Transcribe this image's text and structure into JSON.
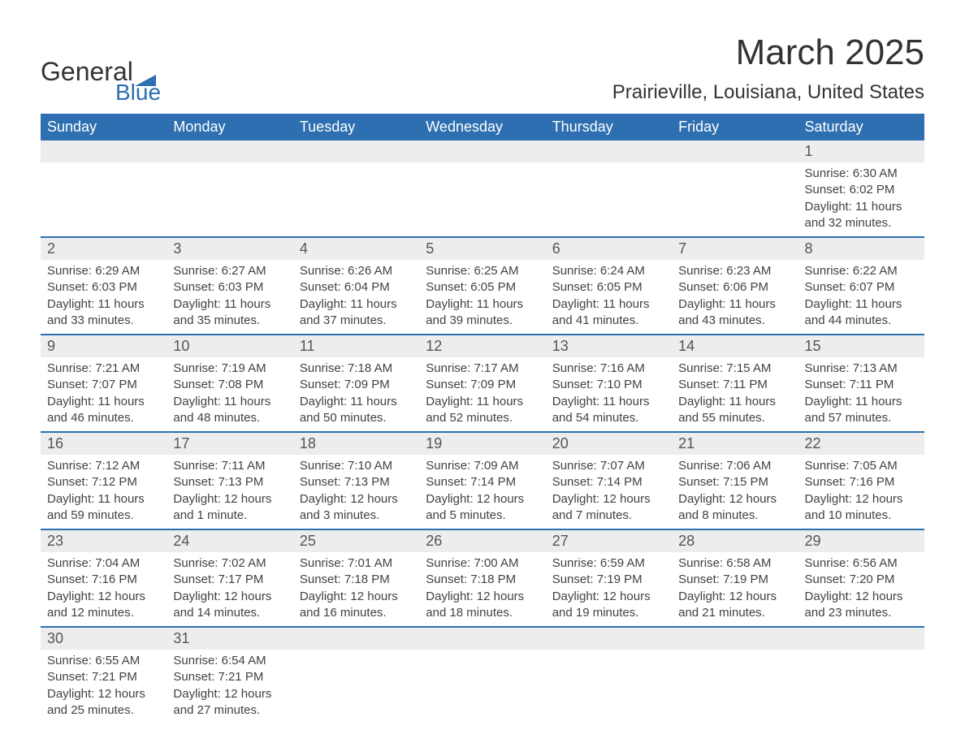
{
  "logo": {
    "top": "General",
    "bottom": "Blue",
    "shape_color": "#2d6fb0"
  },
  "title": "March 2025",
  "location": "Prairieville, Louisiana, United States",
  "colors": {
    "header_bg": "#2d6fb0",
    "header_text": "#ffffff",
    "daynum_bg": "#ededed",
    "daynum_text": "#555555",
    "body_text": "#424242",
    "row_border": "#2d6fb0",
    "page_bg": "#ffffff"
  },
  "typography": {
    "title_fontsize": 44,
    "location_fontsize": 24,
    "header_fontsize": 18,
    "daynum_fontsize": 18,
    "body_fontsize": 15
  },
  "day_headers": [
    "Sunday",
    "Monday",
    "Tuesday",
    "Wednesday",
    "Thursday",
    "Friday",
    "Saturday"
  ],
  "weeks": [
    [
      null,
      null,
      null,
      null,
      null,
      null,
      {
        "n": "1",
        "sr": "Sunrise: 6:30 AM",
        "ss": "Sunset: 6:02 PM",
        "d1": "Daylight: 11 hours",
        "d2": "and 32 minutes."
      }
    ],
    [
      {
        "n": "2",
        "sr": "Sunrise: 6:29 AM",
        "ss": "Sunset: 6:03 PM",
        "d1": "Daylight: 11 hours",
        "d2": "and 33 minutes."
      },
      {
        "n": "3",
        "sr": "Sunrise: 6:27 AM",
        "ss": "Sunset: 6:03 PM",
        "d1": "Daylight: 11 hours",
        "d2": "and 35 minutes."
      },
      {
        "n": "4",
        "sr": "Sunrise: 6:26 AM",
        "ss": "Sunset: 6:04 PM",
        "d1": "Daylight: 11 hours",
        "d2": "and 37 minutes."
      },
      {
        "n": "5",
        "sr": "Sunrise: 6:25 AM",
        "ss": "Sunset: 6:05 PM",
        "d1": "Daylight: 11 hours",
        "d2": "and 39 minutes."
      },
      {
        "n": "6",
        "sr": "Sunrise: 6:24 AM",
        "ss": "Sunset: 6:05 PM",
        "d1": "Daylight: 11 hours",
        "d2": "and 41 minutes."
      },
      {
        "n": "7",
        "sr": "Sunrise: 6:23 AM",
        "ss": "Sunset: 6:06 PM",
        "d1": "Daylight: 11 hours",
        "d2": "and 43 minutes."
      },
      {
        "n": "8",
        "sr": "Sunrise: 6:22 AM",
        "ss": "Sunset: 6:07 PM",
        "d1": "Daylight: 11 hours",
        "d2": "and 44 minutes."
      }
    ],
    [
      {
        "n": "9",
        "sr": "Sunrise: 7:21 AM",
        "ss": "Sunset: 7:07 PM",
        "d1": "Daylight: 11 hours",
        "d2": "and 46 minutes."
      },
      {
        "n": "10",
        "sr": "Sunrise: 7:19 AM",
        "ss": "Sunset: 7:08 PM",
        "d1": "Daylight: 11 hours",
        "d2": "and 48 minutes."
      },
      {
        "n": "11",
        "sr": "Sunrise: 7:18 AM",
        "ss": "Sunset: 7:09 PM",
        "d1": "Daylight: 11 hours",
        "d2": "and 50 minutes."
      },
      {
        "n": "12",
        "sr": "Sunrise: 7:17 AM",
        "ss": "Sunset: 7:09 PM",
        "d1": "Daylight: 11 hours",
        "d2": "and 52 minutes."
      },
      {
        "n": "13",
        "sr": "Sunrise: 7:16 AM",
        "ss": "Sunset: 7:10 PM",
        "d1": "Daylight: 11 hours",
        "d2": "and 54 minutes."
      },
      {
        "n": "14",
        "sr": "Sunrise: 7:15 AM",
        "ss": "Sunset: 7:11 PM",
        "d1": "Daylight: 11 hours",
        "d2": "and 55 minutes."
      },
      {
        "n": "15",
        "sr": "Sunrise: 7:13 AM",
        "ss": "Sunset: 7:11 PM",
        "d1": "Daylight: 11 hours",
        "d2": "and 57 minutes."
      }
    ],
    [
      {
        "n": "16",
        "sr": "Sunrise: 7:12 AM",
        "ss": "Sunset: 7:12 PM",
        "d1": "Daylight: 11 hours",
        "d2": "and 59 minutes."
      },
      {
        "n": "17",
        "sr": "Sunrise: 7:11 AM",
        "ss": "Sunset: 7:13 PM",
        "d1": "Daylight: 12 hours",
        "d2": "and 1 minute."
      },
      {
        "n": "18",
        "sr": "Sunrise: 7:10 AM",
        "ss": "Sunset: 7:13 PM",
        "d1": "Daylight: 12 hours",
        "d2": "and 3 minutes."
      },
      {
        "n": "19",
        "sr": "Sunrise: 7:09 AM",
        "ss": "Sunset: 7:14 PM",
        "d1": "Daylight: 12 hours",
        "d2": "and 5 minutes."
      },
      {
        "n": "20",
        "sr": "Sunrise: 7:07 AM",
        "ss": "Sunset: 7:14 PM",
        "d1": "Daylight: 12 hours",
        "d2": "and 7 minutes."
      },
      {
        "n": "21",
        "sr": "Sunrise: 7:06 AM",
        "ss": "Sunset: 7:15 PM",
        "d1": "Daylight: 12 hours",
        "d2": "and 8 minutes."
      },
      {
        "n": "22",
        "sr": "Sunrise: 7:05 AM",
        "ss": "Sunset: 7:16 PM",
        "d1": "Daylight: 12 hours",
        "d2": "and 10 minutes."
      }
    ],
    [
      {
        "n": "23",
        "sr": "Sunrise: 7:04 AM",
        "ss": "Sunset: 7:16 PM",
        "d1": "Daylight: 12 hours",
        "d2": "and 12 minutes."
      },
      {
        "n": "24",
        "sr": "Sunrise: 7:02 AM",
        "ss": "Sunset: 7:17 PM",
        "d1": "Daylight: 12 hours",
        "d2": "and 14 minutes."
      },
      {
        "n": "25",
        "sr": "Sunrise: 7:01 AM",
        "ss": "Sunset: 7:18 PM",
        "d1": "Daylight: 12 hours",
        "d2": "and 16 minutes."
      },
      {
        "n": "26",
        "sr": "Sunrise: 7:00 AM",
        "ss": "Sunset: 7:18 PM",
        "d1": "Daylight: 12 hours",
        "d2": "and 18 minutes."
      },
      {
        "n": "27",
        "sr": "Sunrise: 6:59 AM",
        "ss": "Sunset: 7:19 PM",
        "d1": "Daylight: 12 hours",
        "d2": "and 19 minutes."
      },
      {
        "n": "28",
        "sr": "Sunrise: 6:58 AM",
        "ss": "Sunset: 7:19 PM",
        "d1": "Daylight: 12 hours",
        "d2": "and 21 minutes."
      },
      {
        "n": "29",
        "sr": "Sunrise: 6:56 AM",
        "ss": "Sunset: 7:20 PM",
        "d1": "Daylight: 12 hours",
        "d2": "and 23 minutes."
      }
    ],
    [
      {
        "n": "30",
        "sr": "Sunrise: 6:55 AM",
        "ss": "Sunset: 7:21 PM",
        "d1": "Daylight: 12 hours",
        "d2": "and 25 minutes."
      },
      {
        "n": "31",
        "sr": "Sunrise: 6:54 AM",
        "ss": "Sunset: 7:21 PM",
        "d1": "Daylight: 12 hours",
        "d2": "and 27 minutes."
      },
      null,
      null,
      null,
      null,
      null
    ]
  ]
}
